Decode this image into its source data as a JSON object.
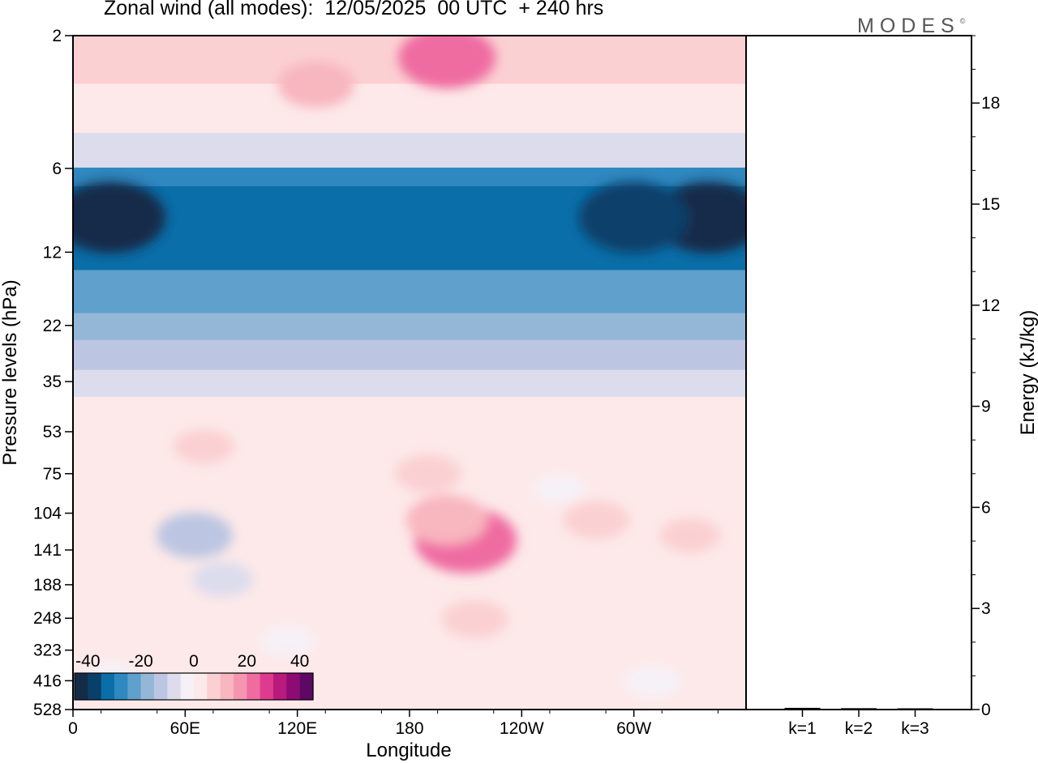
{
  "title": "Zonal wind (all modes):  12/05/2025  00 UTC  + 240 hrs",
  "logo": {
    "text": "MODES",
    "mark": "©"
  },
  "chart_data": [
    {
      "type": "heatmap",
      "title": "Zonal wind (all modes):  12/05/2025  00 UTC  + 240 hrs",
      "xlabel": "Longitude",
      "ylabel": "Pressure levels (hPa)",
      "x_ticks": [
        "0",
        "60E",
        "120E",
        "180",
        "120W",
        "60W"
      ],
      "x_range_deg_east": [
        0,
        360
      ],
      "x_tick_values_deg_east": [
        0,
        60,
        120,
        180,
        240,
        300
      ],
      "y_ticks": [
        "2",
        "6",
        "12",
        "22",
        "35",
        "53",
        "75",
        "104",
        "141",
        "188",
        "248",
        "323",
        "416",
        "528"
      ],
      "y_scale": "log",
      "y_range_hPa": [
        528,
        2
      ],
      "colorbar": {
        "ticks": [
          "-40",
          "-20",
          "0",
          "20",
          "40"
        ],
        "range": [
          -45,
          45
        ],
        "step": 5,
        "colors": [
          "#132c48",
          "#08406a",
          "#0a6ea8",
          "#2f88c0",
          "#5fa0cc",
          "#94b7d8",
          "#bcc6e2",
          "#dcdced",
          "#f6f1f7",
          "#fde9e9",
          "#fbd0d2",
          "#f8b6bf",
          "#f595b0",
          "#ef6ca1",
          "#df3b8e",
          "#b81a7d",
          "#8e0b74",
          "#5e0866"
        ]
      },
      "bands": [
        {
          "p_top": 2,
          "p_bottom": 3,
          "value": 8
        },
        {
          "p_top": 3,
          "p_bottom": 4.5,
          "value": 3
        },
        {
          "p_top": 4.5,
          "p_bottom": 6,
          "value": -8
        },
        {
          "p_top": 6,
          "p_bottom": 7,
          "value": -28
        },
        {
          "p_top": 7,
          "p_bottom": 14,
          "value": -33
        },
        {
          "p_top": 14,
          "p_bottom": 20,
          "value": -25
        },
        {
          "p_top": 20,
          "p_bottom": 25,
          "value": -18
        },
        {
          "p_top": 25,
          "p_bottom": 32,
          "value": -12
        },
        {
          "p_top": 32,
          "p_bottom": 40,
          "value": -6
        },
        {
          "p_top": 40,
          "p_bottom": 528,
          "value": 1
        }
      ],
      "features": [
        {
          "lon": 20,
          "p": 9,
          "value": -42
        },
        {
          "lon": 340,
          "p": 9,
          "value": -42
        },
        {
          "lon": 300,
          "p": 9,
          "value": -38
        },
        {
          "lon": 200,
          "p": 2.4,
          "value": 20
        },
        {
          "lon": 130,
          "p": 3,
          "value": 12
        },
        {
          "lon": 210,
          "p": 130,
          "value": 22
        },
        {
          "lon": 200,
          "p": 110,
          "value": 14
        },
        {
          "lon": 215,
          "p": 250,
          "value": 8
        },
        {
          "lon": 190,
          "p": 75,
          "value": 8
        },
        {
          "lon": 280,
          "p": 110,
          "value": 8
        },
        {
          "lon": 330,
          "p": 125,
          "value": 6
        },
        {
          "lon": 70,
          "p": 60,
          "value": 6
        },
        {
          "lon": 260,
          "p": 85,
          "value": -3
        },
        {
          "lon": 65,
          "p": 125,
          "value": -12
        },
        {
          "lon": 80,
          "p": 180,
          "value": -6
        },
        {
          "lon": 40,
          "p": 200,
          "value": 4
        },
        {
          "lon": 115,
          "p": 300,
          "value": -4
        },
        {
          "lon": 310,
          "p": 420,
          "value": -5
        },
        {
          "lon": 70,
          "p": 450,
          "value": 3
        },
        {
          "lon": 20,
          "p": 400,
          "value": -3
        }
      ]
    },
    {
      "type": "bar",
      "ylabel": "Energy (kJ/kg)",
      "categories": [
        "k=1",
        "k=2",
        "k=3"
      ],
      "values": [
        0.05,
        0.04,
        0.01
      ],
      "ylim": [
        0,
        20
      ],
      "y_ticks": [
        "0",
        "3",
        "6",
        "9",
        "12",
        "15",
        "18"
      ],
      "y_tick_values": [
        0,
        3,
        6,
        9,
        12,
        15,
        18
      ]
    }
  ]
}
